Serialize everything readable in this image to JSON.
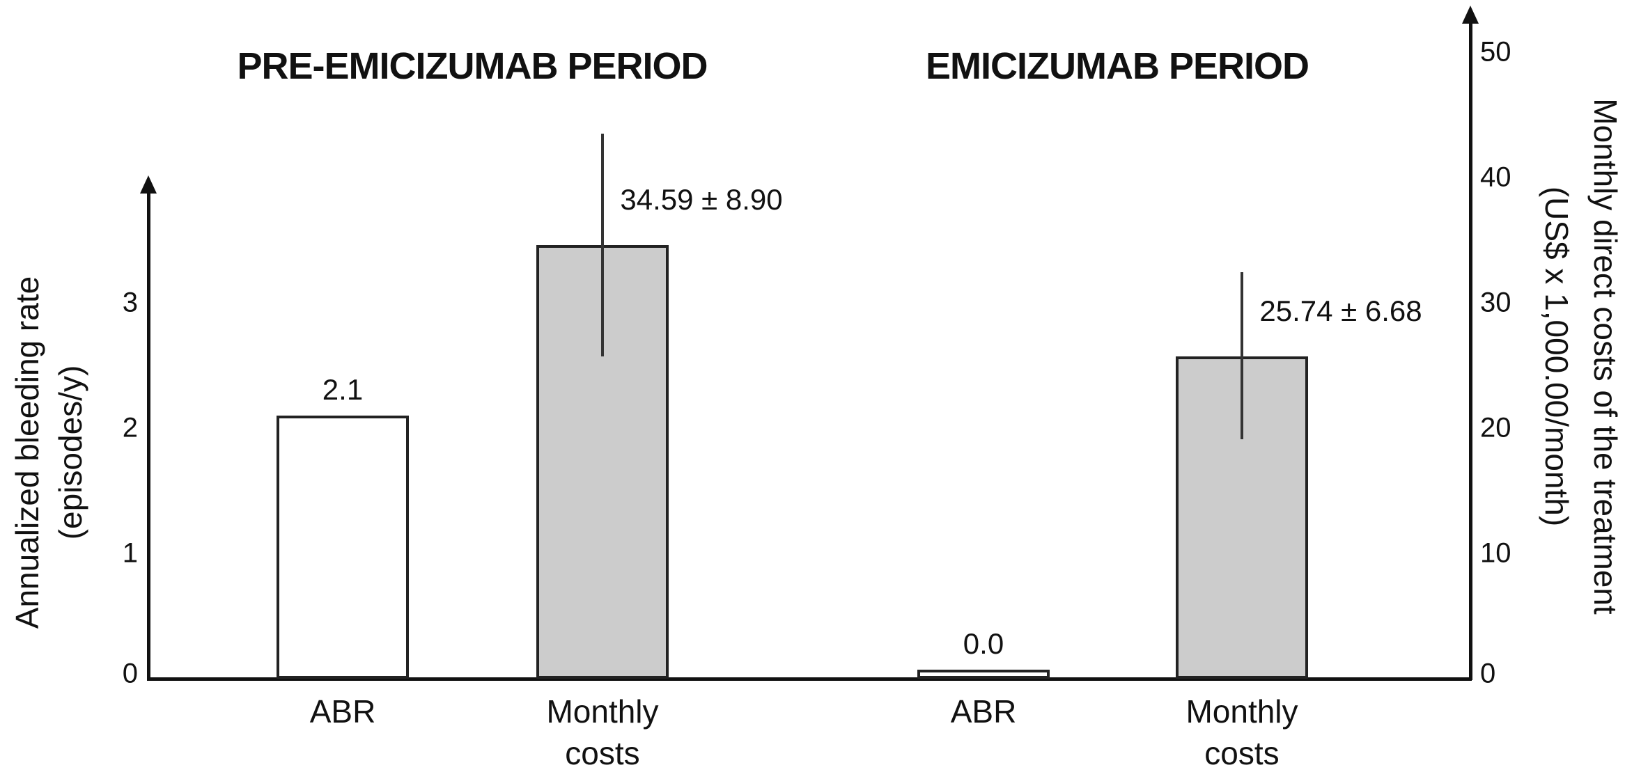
{
  "figure": {
    "background": "#ffffff"
  },
  "colors": {
    "ink": "#111111",
    "bar_gray": "#cccccc",
    "bar_white": "#ffffff",
    "bar_border": "#222222"
  },
  "chart_data": {
    "type": "bar",
    "groups": [
      {
        "title": "PRE-EMICIZUMAB PERIOD",
        "bars": [
          {
            "category_lines": [
              "ABR"
            ],
            "value": 2.1,
            "value_label": "2.1",
            "axis": "left",
            "fill": "bar_white",
            "error": null
          },
          {
            "category_lines": [
              "Monthly",
              "costs"
            ],
            "value": 34.59,
            "error": 8.9,
            "value_label": "34.59 ± 8.90",
            "axis": "right",
            "fill": "bar_gray"
          }
        ]
      },
      {
        "title": "EMICIZUMAB PERIOD",
        "bars": [
          {
            "category_lines": [
              "ABR"
            ],
            "value": 0.0,
            "value_label": "0.0",
            "axis": "left",
            "fill": "bar_white",
            "error": null
          },
          {
            "category_lines": [
              "Monthly",
              "costs"
            ],
            "value": 25.74,
            "error": 6.68,
            "value_label": "25.74 ± 6.68",
            "axis": "right",
            "fill": "bar_gray"
          }
        ]
      }
    ],
    "left_axis": {
      "title_lines": [
        "Annualized bleeding rate",
        "(episodes/y)"
      ],
      "ticks": [
        0,
        1,
        2,
        3
      ],
      "range": [
        0,
        4
      ]
    },
    "right_axis": {
      "title_lines": [
        "Monthly direct costs of the treatment",
        "(US$ x 1,000.00/month)"
      ],
      "ticks": [
        0,
        10,
        20,
        30,
        40,
        50
      ],
      "range": [
        0,
        53
      ]
    },
    "legend": null,
    "grid": false
  }
}
